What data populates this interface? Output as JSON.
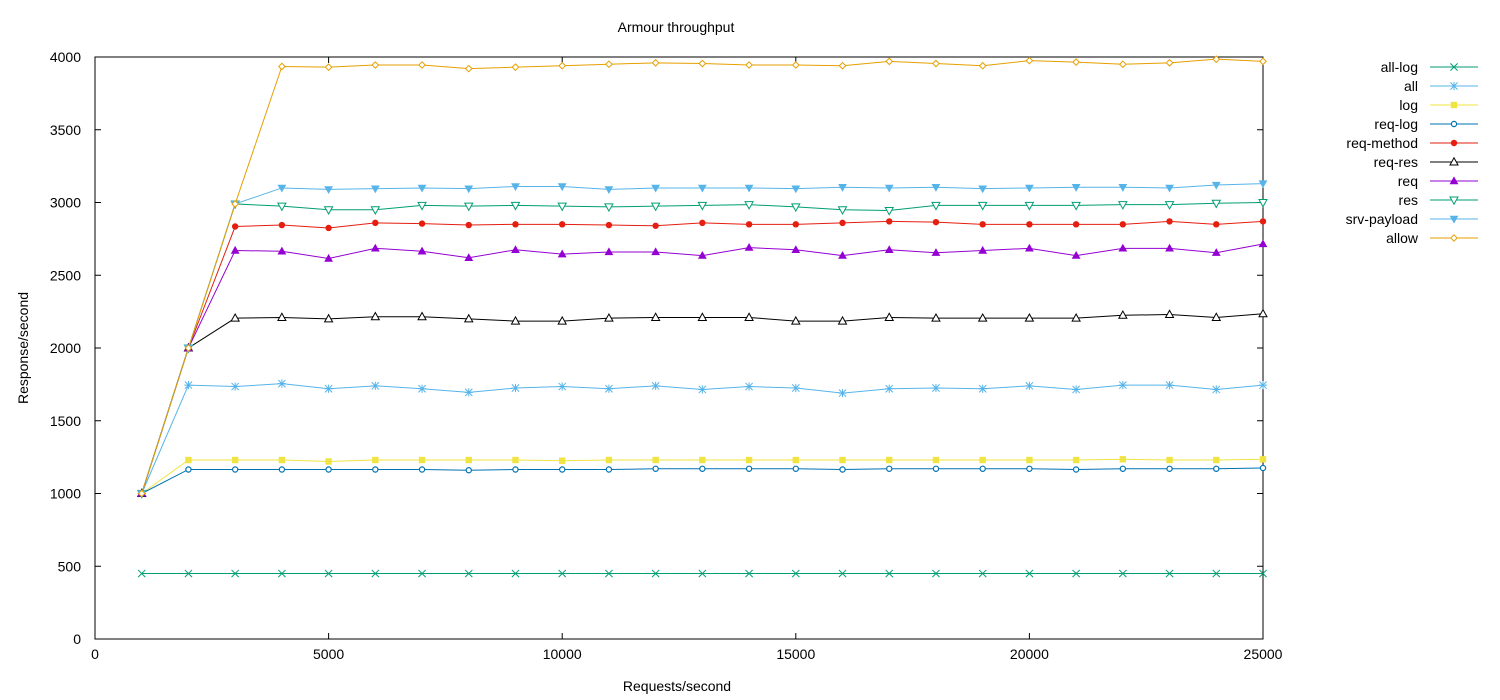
{
  "chart_data": {
    "type": "line",
    "title": "Armour throughput",
    "xlabel": "Requests/second",
    "ylabel": "Response/second",
    "xlim": [
      0,
      25000
    ],
    "ylim": [
      0,
      4000
    ],
    "xticks": [
      0,
      5000,
      10000,
      15000,
      20000,
      25000
    ],
    "yticks": [
      0,
      500,
      1000,
      1500,
      2000,
      2500,
      3000,
      3500,
      4000
    ],
    "xtick_labels": [
      "0",
      "5000",
      "10000",
      "15000",
      "20000",
      "25000"
    ],
    "ytick_labels": [
      "0",
      "500",
      "1000",
      "1500",
      "2000",
      "2500",
      "3000",
      "3500",
      "4000"
    ],
    "grid": false,
    "legend_position": "outside-right",
    "x": [
      1000,
      2000,
      3000,
      4000,
      5000,
      6000,
      7000,
      8000,
      9000,
      10000,
      11000,
      12000,
      13000,
      14000,
      15000,
      16000,
      17000,
      18000,
      19000,
      20000,
      21000,
      22000,
      23000,
      24000,
      25000
    ],
    "series": [
      {
        "name": "all-log",
        "color": "#009e73",
        "marker": "x",
        "values": [
          450,
          450,
          450,
          450,
          450,
          450,
          450,
          450,
          450,
          450,
          450,
          450,
          450,
          450,
          450,
          450,
          450,
          450,
          450,
          450,
          450,
          450,
          450,
          450,
          450
        ]
      },
      {
        "name": "all",
        "color": "#56b4e9",
        "marker": "star",
        "values": [
          1000,
          1745,
          1735,
          1755,
          1720,
          1740,
          1720,
          1695,
          1725,
          1735,
          1720,
          1740,
          1715,
          1735,
          1725,
          1690,
          1720,
          1725,
          1720,
          1740,
          1715,
          1745,
          1745,
          1715,
          1745
        ]
      },
      {
        "name": "log",
        "color": "#f0e442",
        "marker": "square",
        "values": [
          1000,
          1230,
          1230,
          1230,
          1220,
          1230,
          1230,
          1230,
          1230,
          1225,
          1230,
          1230,
          1230,
          1230,
          1230,
          1230,
          1230,
          1230,
          1230,
          1230,
          1230,
          1235,
          1230,
          1230,
          1235
        ]
      },
      {
        "name": "req-log",
        "color": "#0072b2",
        "marker": "circle",
        "values": [
          1000,
          1165,
          1165,
          1165,
          1165,
          1165,
          1165,
          1160,
          1165,
          1165,
          1165,
          1170,
          1170,
          1170,
          1170,
          1165,
          1170,
          1170,
          1170,
          1170,
          1165,
          1170,
          1170,
          1170,
          1175
        ]
      },
      {
        "name": "req-method",
        "color": "#e51e10",
        "marker": "filled-circle",
        "values": [
          1000,
          2000,
          2835,
          2845,
          2825,
          2860,
          2855,
          2845,
          2850,
          2850,
          2845,
          2840,
          2860,
          2850,
          2850,
          2860,
          2870,
          2865,
          2850,
          2850,
          2850,
          2850,
          2870,
          2850,
          2870
        ]
      },
      {
        "name": "req-res",
        "color": "#000000",
        "marker": "triangle",
        "values": [
          1000,
          2000,
          2205,
          2210,
          2200,
          2215,
          2215,
          2200,
          2185,
          2185,
          2205,
          2210,
          2210,
          2210,
          2185,
          2185,
          2210,
          2205,
          2205,
          2205,
          2205,
          2225,
          2230,
          2210,
          2235
        ]
      },
      {
        "name": "req",
        "color": "#9400d3",
        "marker": "filled-triangle",
        "values": [
          1000,
          2000,
          2670,
          2665,
          2615,
          2685,
          2665,
          2620,
          2675,
          2645,
          2660,
          2660,
          2635,
          2690,
          2675,
          2635,
          2675,
          2655,
          2670,
          2685,
          2635,
          2685,
          2685,
          2655,
          2715
        ]
      },
      {
        "name": "res",
        "color": "#009e73",
        "marker": "inverted-triangle",
        "values": [
          1000,
          2000,
          2990,
          2975,
          2950,
          2950,
          2980,
          2975,
          2980,
          2975,
          2970,
          2975,
          2980,
          2985,
          2970,
          2950,
          2945,
          2980,
          2980,
          2980,
          2980,
          2985,
          2985,
          2995,
          3000
        ]
      },
      {
        "name": "srv-payload",
        "color": "#56b4e9",
        "marker": "filled-inverted-triangle",
        "values": [
          1000,
          2000,
          2990,
          3100,
          3090,
          3095,
          3100,
          3095,
          3110,
          3110,
          3090,
          3100,
          3100,
          3100,
          3095,
          3105,
          3100,
          3105,
          3095,
          3100,
          3105,
          3105,
          3100,
          3120,
          3130
        ]
      },
      {
        "name": "allow",
        "color": "#e69f00",
        "marker": "diamond",
        "values": [
          1000,
          2000,
          2990,
          3935,
          3930,
          3945,
          3945,
          3920,
          3930,
          3940,
          3950,
          3960,
          3955,
          3945,
          3945,
          3940,
          3970,
          3955,
          3940,
          3975,
          3965,
          3950,
          3960,
          3985,
          3970
        ]
      }
    ]
  }
}
